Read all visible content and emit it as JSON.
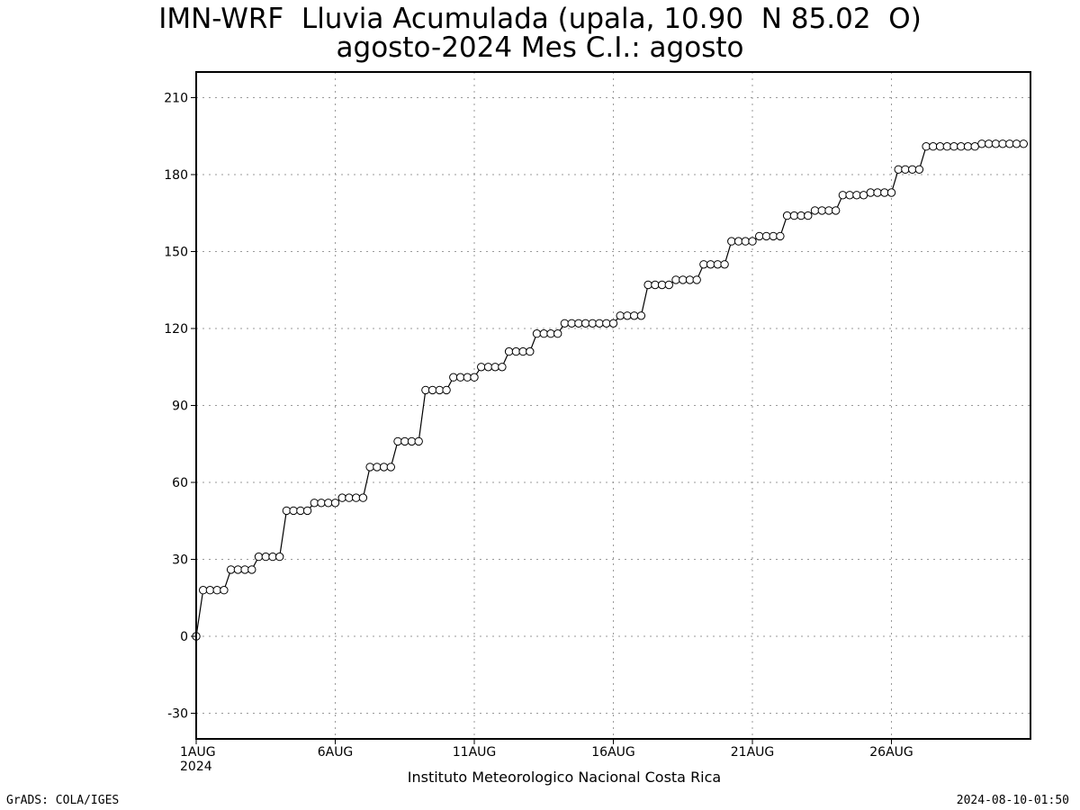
{
  "chart_data": {
    "type": "line",
    "title": "IMN-WRF  Lluvia Acumulada (upala, 10.90  N 85.02  O)",
    "subtitle": "agosto-2024 Mes C.I.: agosto",
    "xlabel": "Instituto Meteorologico Nacional Costa Rica",
    "ylabel": "",
    "x_start": "1AUG 2024",
    "x_step_hours": 6,
    "x_ticks": [
      {
        "day": 1,
        "label": "1AUG",
        "sublabel": "2024"
      },
      {
        "day": 6,
        "label": "6AUG"
      },
      {
        "day": 11,
        "label": "11AUG"
      },
      {
        "day": 16,
        "label": "16AUG"
      },
      {
        "day": 21,
        "label": "21AUG"
      },
      {
        "day": 26,
        "label": "26AUG"
      }
    ],
    "xlim_days": [
      1,
      31
    ],
    "ylim": [
      -40,
      220
    ],
    "y_ticks": [
      -30,
      0,
      30,
      60,
      90,
      120,
      150,
      180,
      210
    ],
    "grid": true,
    "series": [
      {
        "values": [
          0,
          18,
          18,
          18,
          18,
          26,
          26,
          26,
          26,
          31,
          31,
          31,
          31,
          49,
          49,
          49,
          49,
          52,
          52,
          52,
          52,
          54,
          54,
          54,
          54,
          66,
          66,
          66,
          66,
          76,
          76,
          76,
          76,
          96,
          96,
          96,
          96,
          101,
          101,
          101,
          101,
          105,
          105,
          105,
          105,
          111,
          111,
          111,
          111,
          118,
          118,
          118,
          118,
          122,
          122,
          122,
          122,
          122,
          122,
          122,
          122,
          125,
          125,
          125,
          125,
          137,
          137,
          137,
          137,
          139,
          139,
          139,
          139,
          145,
          145,
          145,
          145,
          154,
          154,
          154,
          154,
          156,
          156,
          156,
          156,
          164,
          164,
          164,
          164,
          166,
          166,
          166,
          166,
          172,
          172,
          172,
          172,
          173,
          173,
          173,
          173,
          182,
          182,
          182,
          182,
          191,
          191,
          191,
          191,
          191,
          191,
          191,
          191,
          192,
          192,
          192,
          192,
          192,
          192,
          192
        ]
      }
    ]
  },
  "footer": {
    "credit": "GrADS: COLA/IGES",
    "timestamp": "2024-08-10-01:50"
  }
}
